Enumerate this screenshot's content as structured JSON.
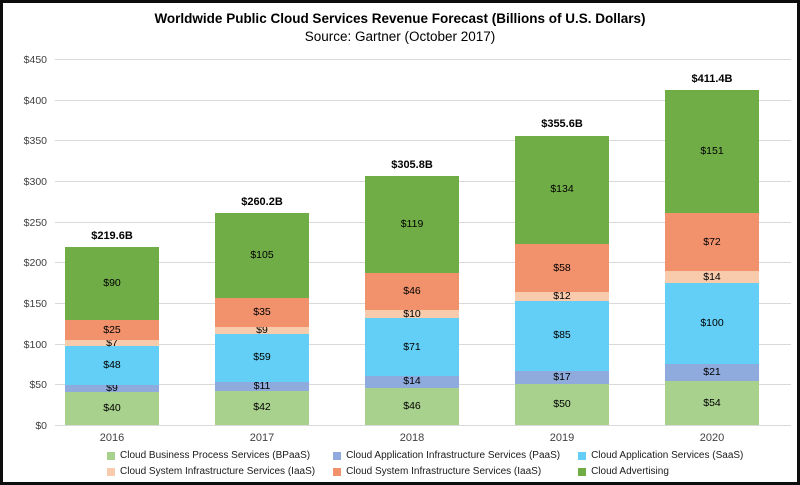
{
  "title": "Worldwide Public Cloud Services Revenue Forecast (Billions of U.S. Dollars)",
  "subtitle": "Source: Gartner (October 2017)",
  "chart_data": {
    "type": "bar",
    "stacked": true,
    "grid": true,
    "legend_position": "bottom",
    "gridline_color": "#d9d9d9",
    "axis_label_color": "#404040",
    "categories": [
      "2016",
      "2017",
      "2018",
      "2019",
      "2020"
    ],
    "series": [
      {
        "name": "Cloud Business Process Services (BPaaS)",
        "color": "#a9d18e",
        "values": [
          40,
          42,
          46,
          50,
          54
        ]
      },
      {
        "name": "Cloud Application Infrastructure Services (PaaS)",
        "color": "#8faadc",
        "values": [
          9,
          11,
          14,
          17,
          21
        ]
      },
      {
        "name": "Cloud Application Services (SaaS)",
        "color": "#63cff6",
        "values": [
          48,
          59,
          71,
          85,
          100
        ]
      },
      {
        "name": "Cloud System Infrastructure Services (IaaS)",
        "color": "#f8cbad",
        "values": [
          7,
          9,
          10,
          12,
          14
        ]
      },
      {
        "name": "Cloud System Infrastructure Services (IaaS)",
        "color": "#f2926c",
        "values": [
          25,
          35,
          46,
          58,
          72
        ]
      },
      {
        "name": "Cloud Advertising",
        "color": "#70ad47",
        "values": [
          90,
          105,
          119,
          134,
          151
        ]
      }
    ],
    "totals": [
      "$219.6B",
      "$260.2B",
      "$305.8B",
      "$355.6B",
      "$411.4B"
    ],
    "segment_label_prefix": "$",
    "y_axis": {
      "min": 0,
      "max": 450,
      "step": 50,
      "tick_labels": [
        "$0",
        "$50",
        "$100",
        "$150",
        "$200",
        "$250",
        "$300",
        "$350",
        "$400",
        "$450"
      ]
    }
  }
}
